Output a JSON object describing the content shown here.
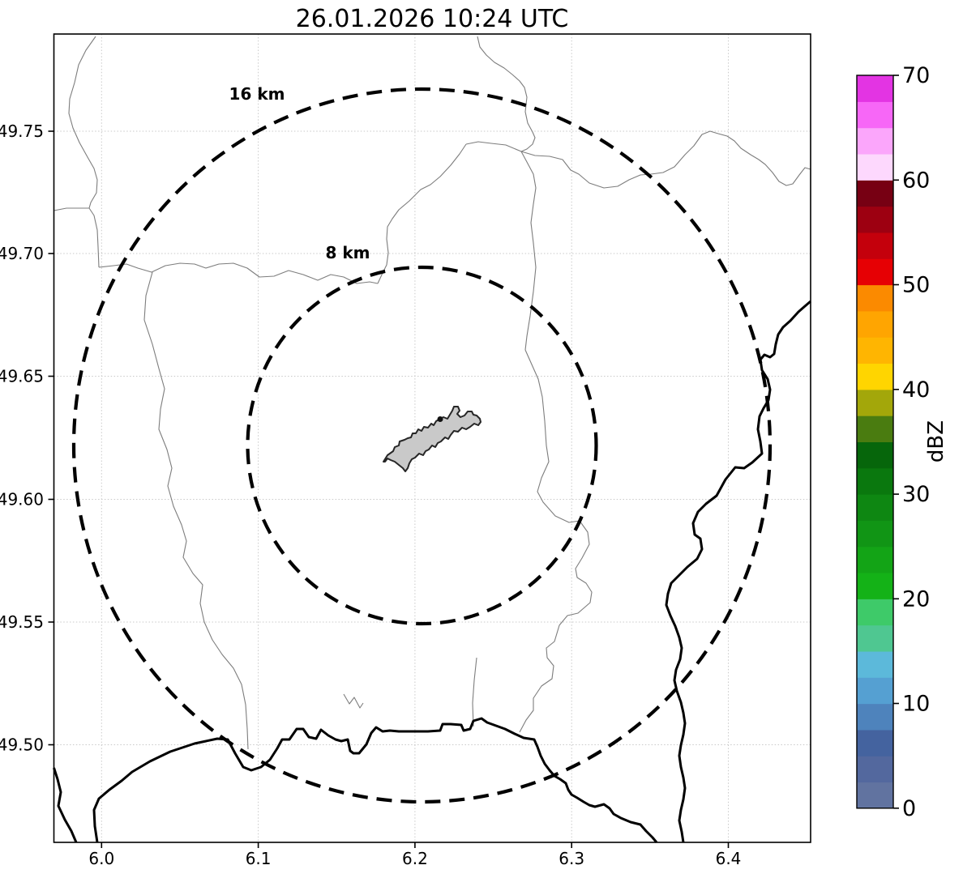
{
  "title": "26.01.2026 10:24 UTC",
  "axes": {
    "x_ticks": [
      "6.0",
      "6.1",
      "6.2",
      "6.3",
      "6.4"
    ],
    "y_ticks": [
      "49.75",
      "49.70",
      "49.65",
      "49.60",
      "49.55",
      "49.50"
    ]
  },
  "rings": [
    {
      "label": "16 km",
      "radius_km": 16
    },
    {
      "label": "8 km",
      "radius_km": 8
    }
  ],
  "colorbar": {
    "label": "dBZ",
    "ticks": [
      "0",
      "10",
      "20",
      "30",
      "40",
      "50",
      "60",
      "70"
    ],
    "range": [
      0,
      70
    ],
    "segments": [
      {
        "from": 0.0,
        "to": 2.5,
        "color": "#6173a0"
      },
      {
        "from": 2.5,
        "to": 5.0,
        "color": "#53689e"
      },
      {
        "from": 5.0,
        "to": 7.5,
        "color": "#44639f"
      },
      {
        "from": 7.5,
        "to": 10.0,
        "color": "#4e83bc"
      },
      {
        "from": 10.0,
        "to": 12.5,
        "color": "#55a0d2"
      },
      {
        "from": 12.5,
        "to": 15.0,
        "color": "#5cb9da"
      },
      {
        "from": 15.0,
        "to": 17.5,
        "color": "#4fc791"
      },
      {
        "from": 17.5,
        "to": 20.0,
        "color": "#3eca69"
      },
      {
        "from": 20.0,
        "to": 22.5,
        "color": "#14b217"
      },
      {
        "from": 22.5,
        "to": 25.0,
        "color": "#13a416"
      },
      {
        "from": 25.0,
        "to": 27.5,
        "color": "#119515"
      },
      {
        "from": 27.5,
        "to": 30.0,
        "color": "#0e8712"
      },
      {
        "from": 30.0,
        "to": 32.5,
        "color": "#0a780e"
      },
      {
        "from": 32.5,
        "to": 35.0,
        "color": "#06660b"
      },
      {
        "from": 35.0,
        "to": 37.5,
        "color": "#4a7c10"
      },
      {
        "from": 37.5,
        "to": 40.0,
        "color": "#a3a70a"
      },
      {
        "from": 40.0,
        "to": 42.5,
        "color": "#ffd500"
      },
      {
        "from": 42.5,
        "to": 45.0,
        "color": "#ffb501"
      },
      {
        "from": 45.0,
        "to": 47.5,
        "color": "#ffa501"
      },
      {
        "from": 47.5,
        "to": 50.0,
        "color": "#fb8a00"
      },
      {
        "from": 50.0,
        "to": 52.5,
        "color": "#e60004"
      },
      {
        "from": 52.5,
        "to": 55.0,
        "color": "#c4000c"
      },
      {
        "from": 55.0,
        "to": 57.5,
        "color": "#9d0011"
      },
      {
        "from": 57.5,
        "to": 60.0,
        "color": "#770013"
      },
      {
        "from": 60.0,
        "to": 62.5,
        "color": "#fdd8fd"
      },
      {
        "from": 62.5,
        "to": 65.0,
        "color": "#fba6fb"
      },
      {
        "from": 65.0,
        "to": 67.5,
        "color": "#f767f7"
      },
      {
        "from": 67.5,
        "to": 70.0,
        "color": "#e334e3"
      }
    ]
  }
}
